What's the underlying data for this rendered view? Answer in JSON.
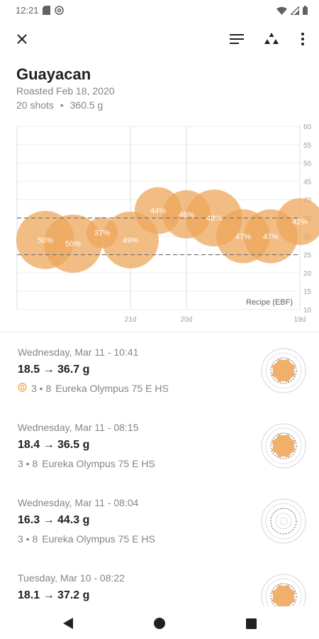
{
  "status_bar": {
    "time": "12:21"
  },
  "app_bar": {
    "close_icon": "close-icon",
    "sort_icon": "sort-lines-icon",
    "category_icon": "triangle-shapes-icon",
    "more_icon": "more-vert-icon"
  },
  "header": {
    "title": "Guayacan",
    "roasted": "Roasted Feb 18, 2020",
    "shots_count": "20 shots",
    "separator": "•",
    "total_weight": "360.5 g"
  },
  "chart_data": {
    "type": "scatter",
    "subtype": "bubble",
    "x_tick_labels": [
      "21d",
      "20d",
      "19d"
    ],
    "y_ticks": [
      10,
      15,
      20,
      25,
      30,
      35,
      40,
      45,
      50,
      55,
      60
    ],
    "ylim": [
      10,
      60
    ],
    "reference_lines": [
      25,
      35
    ],
    "annotation": "Recipe (EBF)",
    "points": [
      {
        "label": "50%",
        "y": 29
      },
      {
        "label": "50%",
        "y": 28
      },
      {
        "label": "37%",
        "y": 31
      },
      {
        "label": "49%",
        "y": 29
      },
      {
        "label": "44%",
        "y": 37
      },
      {
        "label": "46%",
        "y": 36
      },
      {
        "label": "48%",
        "y": 35
      },
      {
        "label": "47%",
        "y": 30
      },
      {
        "label": "47%",
        "y": 30
      },
      {
        "label": "42%",
        "y": 34
      }
    ],
    "bubble_color": "#eea75b"
  },
  "shots": [
    {
      "date": "Wednesday, Mar 11 - 10:41",
      "weights": "18.5 → 36.7 g",
      "grind": "3 • 8",
      "grinder": "Eureka Olympus 75 E HS",
      "has_badge": true,
      "thumb": "filled"
    },
    {
      "date": "Wednesday, Mar 11 - 08:15",
      "weights": "18.4 → 36.5 g",
      "grind": "3 • 8",
      "grinder": "Eureka Olympus 75 E HS",
      "has_badge": false,
      "thumb": "filled"
    },
    {
      "date": "Wednesday, Mar 11 - 08:04",
      "weights": "16.3 → 44.3 g",
      "grind": "3 • 8",
      "grinder": "Eureka Olympus 75 E HS",
      "has_badge": false,
      "thumb": "empty"
    },
    {
      "date": "Tuesday, Mar 10 - 08:22",
      "weights": "18.1 → 37.2 g",
      "grind": "",
      "grinder": "",
      "has_badge": false,
      "thumb": "filled"
    }
  ],
  "nav_bar": {
    "back": "back-triangle-icon",
    "home": "home-circle-icon",
    "recents": "recents-square-icon"
  },
  "colors": {
    "accent": "#eea75b",
    "text_secondary": "#80868b"
  }
}
